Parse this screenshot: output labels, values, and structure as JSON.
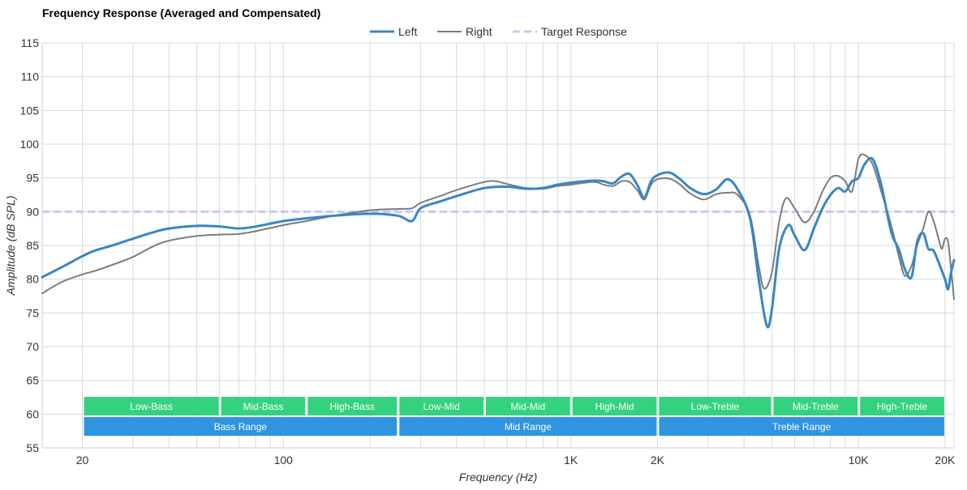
{
  "chart_data": {
    "type": "line",
    "title": "Frequency Response (Averaged and Compensated)",
    "xlabel": "Frequency (Hz)",
    "ylabel": "Amplitude (dB SPL)",
    "x_scale": "log",
    "xlim": [
      14.5,
      21500
    ],
    "ylim": [
      55,
      115
    ],
    "yticks": [
      55,
      60,
      65,
      70,
      75,
      80,
      85,
      90,
      95,
      100,
      105,
      110,
      115
    ],
    "xticks": [
      {
        "value": 20,
        "label": "20"
      },
      {
        "value": 100,
        "label": "100"
      },
      {
        "value": 1000,
        "label": "1K"
      },
      {
        "value": 2000,
        "label": "2K"
      },
      {
        "value": 10000,
        "label": "10K"
      },
      {
        "value": 20000,
        "label": "20K"
      }
    ],
    "grid": true,
    "legend_position": "top-center",
    "series": [
      {
        "name": "Left",
        "color": "#3a86c0",
        "style": "solid",
        "points": [
          [
            14.5,
            80.3
          ],
          [
            17,
            81.8
          ],
          [
            20,
            83.4
          ],
          [
            22,
            84.2
          ],
          [
            25,
            84.9
          ],
          [
            30,
            86.0
          ],
          [
            35,
            86.9
          ],
          [
            40,
            87.5
          ],
          [
            50,
            87.9
          ],
          [
            60,
            87.8
          ],
          [
            70,
            87.5
          ],
          [
            80,
            87.8
          ],
          [
            100,
            88.6
          ],
          [
            120,
            89.0
          ],
          [
            150,
            89.4
          ],
          [
            200,
            89.7
          ],
          [
            250,
            89.4
          ],
          [
            280,
            88.6
          ],
          [
            300,
            90.5
          ],
          [
            350,
            91.5
          ],
          [
            400,
            92.3
          ],
          [
            500,
            93.5
          ],
          [
            600,
            93.7
          ],
          [
            700,
            93.4
          ],
          [
            800,
            93.5
          ],
          [
            900,
            94.0
          ],
          [
            1000,
            94.3
          ],
          [
            1200,
            94.6
          ],
          [
            1300,
            94.5
          ],
          [
            1400,
            94.2
          ],
          [
            1500,
            95.2
          ],
          [
            1600,
            95.6
          ],
          [
            1700,
            94.0
          ],
          [
            1800,
            92.1
          ],
          [
            1900,
            94.5
          ],
          [
            2000,
            95.4
          ],
          [
            2200,
            95.8
          ],
          [
            2400,
            94.8
          ],
          [
            2600,
            93.5
          ],
          [
            2900,
            92.6
          ],
          [
            3200,
            93.3
          ],
          [
            3500,
            94.8
          ],
          [
            3800,
            93.3
          ],
          [
            4200,
            89.0
          ],
          [
            4500,
            80.0
          ],
          [
            4800,
            73.1
          ],
          [
            5000,
            75.5
          ],
          [
            5300,
            84.5
          ],
          [
            5700,
            88.0
          ],
          [
            6000,
            86.5
          ],
          [
            6500,
            84.3
          ],
          [
            7000,
            87.5
          ],
          [
            7500,
            90.5
          ],
          [
            8000,
            92.5
          ],
          [
            8500,
            93.5
          ],
          [
            9000,
            93.0
          ],
          [
            9500,
            94.5
          ],
          [
            10000,
            95.0
          ],
          [
            10500,
            97.0
          ],
          [
            11200,
            97.8
          ],
          [
            12000,
            94.0
          ],
          [
            13000,
            87.0
          ],
          [
            13800,
            84.5
          ],
          [
            14500,
            81.5
          ],
          [
            15300,
            80.3
          ],
          [
            16000,
            85.5
          ],
          [
            16800,
            86.8
          ],
          [
            17500,
            84.5
          ],
          [
            18200,
            84.3
          ],
          [
            19000,
            82.5
          ],
          [
            20000,
            80.0
          ],
          [
            20500,
            78.5
          ],
          [
            21000,
            81.0
          ],
          [
            21500,
            82.8
          ]
        ]
      },
      {
        "name": "Right",
        "color": "#7c7c7c",
        "style": "solid",
        "points": [
          [
            14.5,
            77.9
          ],
          [
            17,
            79.6
          ],
          [
            20,
            80.7
          ],
          [
            22,
            81.2
          ],
          [
            25,
            82.0
          ],
          [
            30,
            83.3
          ],
          [
            35,
            84.8
          ],
          [
            40,
            85.7
          ],
          [
            50,
            86.4
          ],
          [
            60,
            86.6
          ],
          [
            70,
            86.7
          ],
          [
            80,
            87.1
          ],
          [
            100,
            88.0
          ],
          [
            120,
            88.6
          ],
          [
            150,
            89.4
          ],
          [
            200,
            90.2
          ],
          [
            250,
            90.4
          ],
          [
            280,
            90.5
          ],
          [
            300,
            91.3
          ],
          [
            350,
            92.3
          ],
          [
            400,
            93.2
          ],
          [
            500,
            94.4
          ],
          [
            550,
            94.5
          ],
          [
            600,
            94.1
          ],
          [
            700,
            93.5
          ],
          [
            800,
            93.4
          ],
          [
            900,
            93.8
          ],
          [
            1000,
            94.0
          ],
          [
            1200,
            94.4
          ],
          [
            1300,
            94.0
          ],
          [
            1400,
            93.8
          ],
          [
            1500,
            94.5
          ],
          [
            1600,
            94.4
          ],
          [
            1700,
            93.2
          ],
          [
            1800,
            91.8
          ],
          [
            1900,
            94.0
          ],
          [
            2000,
            94.8
          ],
          [
            2200,
            94.9
          ],
          [
            2400,
            94.0
          ],
          [
            2600,
            92.7
          ],
          [
            2900,
            91.8
          ],
          [
            3200,
            92.6
          ],
          [
            3500,
            92.8
          ],
          [
            3800,
            92.5
          ],
          [
            4200,
            89.4
          ],
          [
            4500,
            82.0
          ],
          [
            4700,
            78.6
          ],
          [
            5000,
            81.0
          ],
          [
            5300,
            88.5
          ],
          [
            5600,
            92.0
          ],
          [
            6000,
            90.5
          ],
          [
            6500,
            88.4
          ],
          [
            7000,
            90.0
          ],
          [
            7500,
            93.0
          ],
          [
            8000,
            95.0
          ],
          [
            8500,
            95.3
          ],
          [
            9000,
            94.5
          ],
          [
            9500,
            93.0
          ],
          [
            10000,
            97.8
          ],
          [
            10500,
            98.4
          ],
          [
            11200,
            97.0
          ],
          [
            12000,
            93.0
          ],
          [
            13000,
            88.0
          ],
          [
            13800,
            83.5
          ],
          [
            14500,
            80.5
          ],
          [
            15300,
            82.0
          ],
          [
            16000,
            85.0
          ],
          [
            16800,
            87.5
          ],
          [
            17500,
            90.0
          ],
          [
            18200,
            88.8
          ],
          [
            19000,
            86.0
          ],
          [
            19500,
            84.5
          ],
          [
            20000,
            86.0
          ],
          [
            20500,
            85.5
          ],
          [
            21000,
            81.5
          ],
          [
            21500,
            77.0
          ]
        ]
      },
      {
        "name": "Target Response",
        "color": "#c7c8f5",
        "style": "dashed",
        "points": [
          [
            14.5,
            90
          ],
          [
            21500,
            90
          ]
        ]
      }
    ],
    "bands": [
      {
        "label": "Low-Bass",
        "row": 1,
        "from": 20,
        "to": 60,
        "color": "#34d27e"
      },
      {
        "label": "Mid-Bass",
        "row": 1,
        "from": 60,
        "to": 120,
        "color": "#34d27e"
      },
      {
        "label": "High-Bass",
        "row": 1,
        "from": 120,
        "to": 250,
        "color": "#34d27e"
      },
      {
        "label": "Low-Mid",
        "row": 1,
        "from": 250,
        "to": 500,
        "color": "#34d27e"
      },
      {
        "label": "Mid-Mid",
        "row": 1,
        "from": 500,
        "to": 1000,
        "color": "#34d27e"
      },
      {
        "label": "High-Mid",
        "row": 1,
        "from": 1000,
        "to": 2000,
        "color": "#34d27e"
      },
      {
        "label": "Low-Treble",
        "row": 1,
        "from": 2000,
        "to": 5000,
        "color": "#34d27e"
      },
      {
        "label": "Mid-Treble",
        "row": 1,
        "from": 5000,
        "to": 10000,
        "color": "#34d27e"
      },
      {
        "label": "High-Treble",
        "row": 1,
        "from": 10000,
        "to": 20000,
        "color": "#34d27e"
      },
      {
        "label": "Bass Range",
        "row": 2,
        "from": 20,
        "to": 250,
        "color": "#2f95e0"
      },
      {
        "label": "Mid Range",
        "row": 2,
        "from": 250,
        "to": 2000,
        "color": "#2f95e0"
      },
      {
        "label": "Treble Range",
        "row": 2,
        "from": 2000,
        "to": 20000,
        "color": "#2f95e0"
      }
    ],
    "gridline_color": "#d9d9d9",
    "axis_color": "#cccccc"
  }
}
